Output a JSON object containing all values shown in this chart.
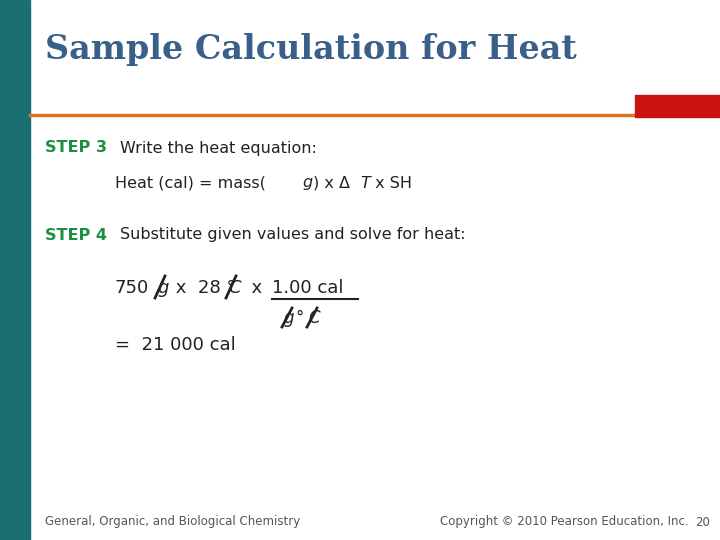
{
  "title": "Sample Calculation for Heat",
  "title_color": "#3A5F8A",
  "title_fontsize": 24,
  "bg_color": "#FFFFFF",
  "left_bar_color": "#1A7070",
  "orange_line_color": "#D4762B",
  "red_rect_color": "#CC1111",
  "step_color": "#1A9040",
  "text_color": "#222222",
  "footer_left": "General, Organic, and Biological Chemistry",
  "footer_right": "Copyright © 2010 Pearson Education, Inc.",
  "footer_page": "20",
  "footer_color": "#555555",
  "footer_fontsize": 8.5
}
